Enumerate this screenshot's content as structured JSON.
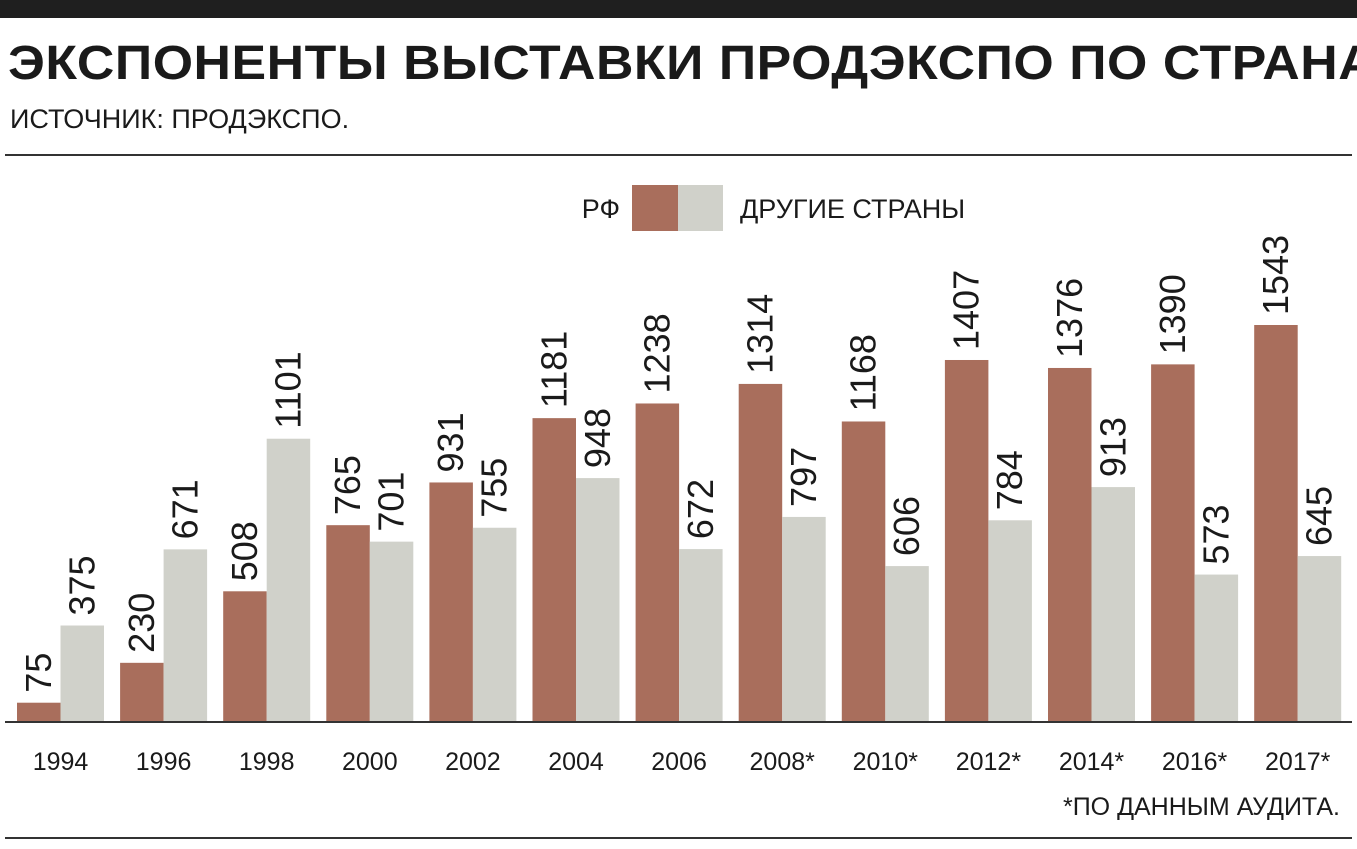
{
  "title": "ЭКСПОНЕНТЫ ВЫСТАВКИ ПРОДЭКСПО ПО СТРАНАМ",
  "subtitle": "ИСТОЧНИК: ПРОДЭКСПО.",
  "footnote": "*ПО ДАННЫМ АУДИТА.",
  "colors": {
    "rf": "#a96e5c",
    "other": "#d0d1ca"
  },
  "chart_data": {
    "type": "bar",
    "title": "ЭКСПОНЕНТЫ ВЫСТАВКИ ПРОДЭКСПО ПО СТРАНАМ",
    "categories": [
      "1994",
      "1996",
      "1998",
      "2000",
      "2002",
      "2004",
      "2006",
      "2008*",
      "2010*",
      "2012*",
      "2014*",
      "2016*",
      "2017*"
    ],
    "series": [
      {
        "name": "РФ",
        "values": [
          75,
          230,
          508,
          765,
          931,
          1181,
          1238,
          1314,
          1168,
          1407,
          1376,
          1390,
          1543
        ]
      },
      {
        "name": "ДРУГИЕ СТРАНЫ",
        "values": [
          375,
          671,
          1101,
          701,
          755,
          948,
          672,
          797,
          606,
          784,
          913,
          573,
          645
        ]
      }
    ],
    "ylim": [
      0,
      1543
    ],
    "legend": "top-center",
    "grid": false
  }
}
